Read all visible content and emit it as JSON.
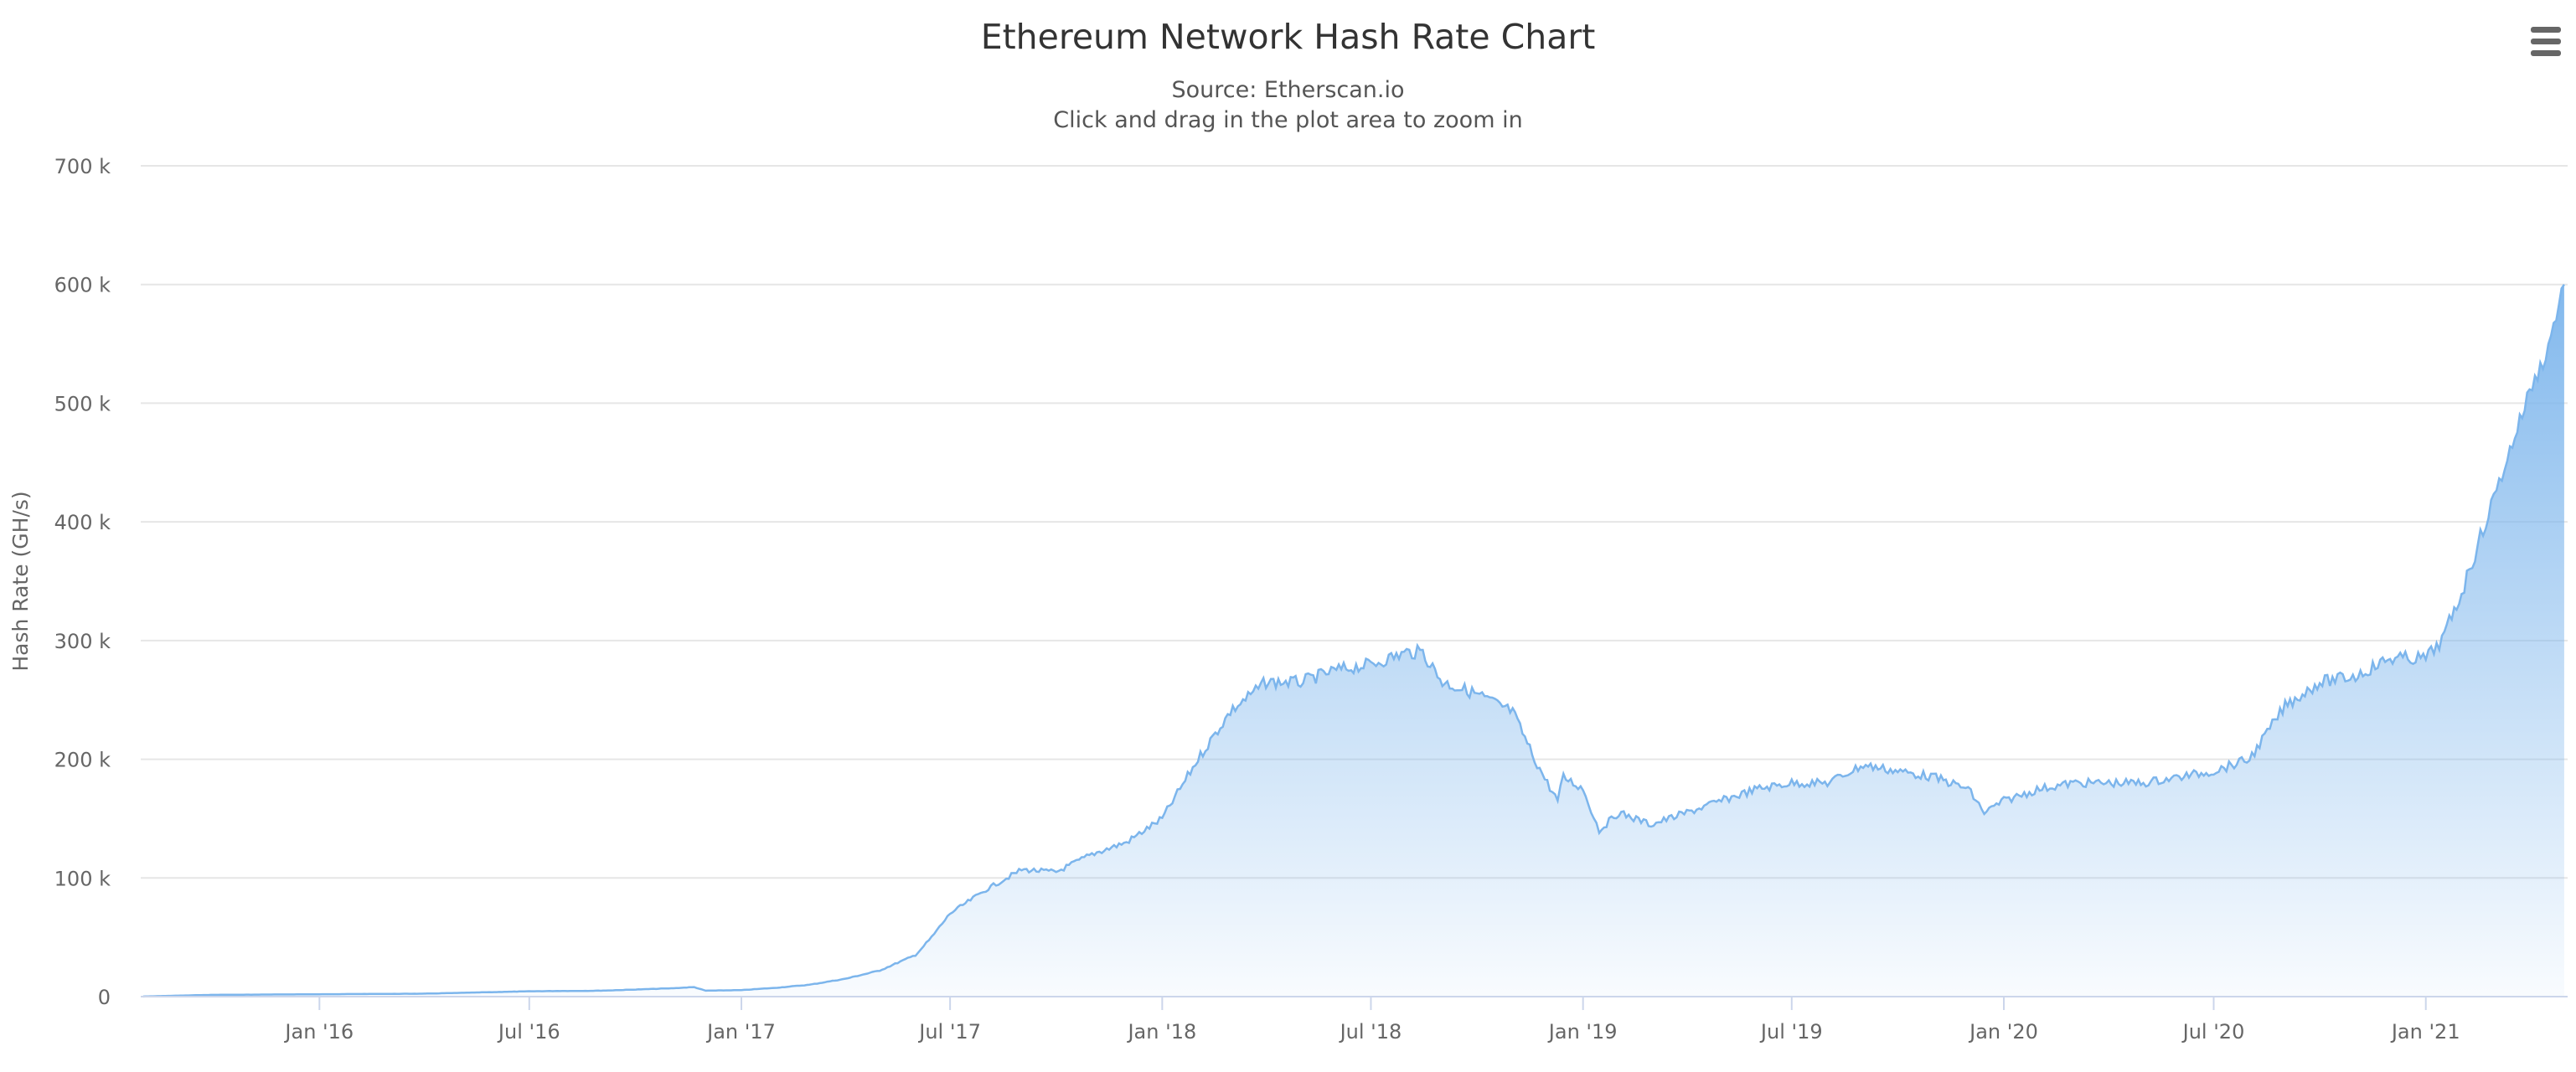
{
  "chart_data": {
    "type": "area",
    "title": "Ethereum Network Hash Rate Chart",
    "subtitle_lines": [
      "Source: Etherscan.io",
      "Click and drag in the plot area to zoom in"
    ],
    "xlabel": "",
    "ylabel": "Hash Rate (GH/s)",
    "ylim": [
      0,
      700000
    ],
    "y_ticks": [
      0,
      100000,
      200000,
      300000,
      400000,
      500000,
      600000,
      700000
    ],
    "y_tick_labels": [
      "0",
      "100 k",
      "200 k",
      "300 k",
      "400 k",
      "500 k",
      "600 k",
      "700 k"
    ],
    "xlim": [
      "2015-07-30",
      "2021-05-04"
    ],
    "x_ticks": [
      "2016-01-01",
      "2016-07-01",
      "2017-01-01",
      "2017-07-01",
      "2018-01-01",
      "2018-07-01",
      "2019-01-01",
      "2019-07-01",
      "2020-01-01",
      "2020-07-01",
      "2021-01-01"
    ],
    "x_tick_labels": [
      "Jan '16",
      "Jul '16",
      "Jan '17",
      "Jul '17",
      "Jan '18",
      "Jul '18",
      "Jan '19",
      "Jul '19",
      "Jan '20",
      "Jul '20",
      "Jan '21"
    ],
    "grid": true,
    "legend": "none",
    "series_color": "#7cb5ec",
    "x": [
      "2015-08-01",
      "2015-10-01",
      "2016-01-01",
      "2016-04-01",
      "2016-07-01",
      "2016-09-01",
      "2016-11-01",
      "2016-11-21",
      "2016-12-01",
      "2017-01-01",
      "2017-02-01",
      "2017-03-01",
      "2017-04-01",
      "2017-05-01",
      "2017-06-01",
      "2017-06-15",
      "2017-07-01",
      "2017-08-01",
      "2017-09-01",
      "2017-10-01",
      "2017-11-01",
      "2017-12-01",
      "2018-01-01",
      "2018-02-01",
      "2018-03-01",
      "2018-04-01",
      "2018-05-01",
      "2018-06-01",
      "2018-07-01",
      "2018-08-01",
      "2018-08-15",
      "2018-09-01",
      "2018-10-01",
      "2018-11-01",
      "2018-11-20",
      "2018-12-01",
      "2018-12-10",
      "2018-12-15",
      "2019-01-01",
      "2019-01-15",
      "2019-02-01",
      "2019-03-01",
      "2019-04-01",
      "2019-05-01",
      "2019-06-01",
      "2019-07-01",
      "2019-08-01",
      "2019-09-01",
      "2019-10-01",
      "2019-11-01",
      "2019-12-01",
      "2019-12-15",
      "2020-01-01",
      "2020-02-01",
      "2020-03-01",
      "2020-04-01",
      "2020-05-01",
      "2020-06-01",
      "2020-07-01",
      "2020-08-01",
      "2020-09-01",
      "2020-10-01",
      "2020-11-01",
      "2020-12-01",
      "2021-01-01",
      "2021-01-15",
      "2021-02-01",
      "2021-02-15",
      "2021-03-01",
      "2021-03-15",
      "2021-04-01",
      "2021-04-15",
      "2021-05-01"
    ],
    "values": [
      100,
      1500,
      2000,
      2500,
      4500,
      5000,
      7000,
      8000,
      5000,
      5500,
      7500,
      10000,
      15000,
      22000,
      35000,
      50000,
      70000,
      90000,
      107000,
      105000,
      120000,
      130000,
      150000,
      200000,
      240000,
      265000,
      265000,
      275000,
      280000,
      290000,
      290000,
      265000,
      255000,
      240000,
      200000,
      180000,
      165000,
      185000,
      175000,
      140000,
      155000,
      145000,
      155000,
      165000,
      175000,
      180000,
      180000,
      195000,
      190000,
      185000,
      175000,
      155000,
      165000,
      175000,
      180000,
      180000,
      180000,
      185000,
      190000,
      200000,
      245000,
      265000,
      270000,
      285000,
      285000,
      300000,
      340000,
      380000,
      420000,
      460000,
      510000,
      540000,
      600000
    ]
  },
  "ui": {
    "menu_icon": "hamburger-menu-icon"
  }
}
